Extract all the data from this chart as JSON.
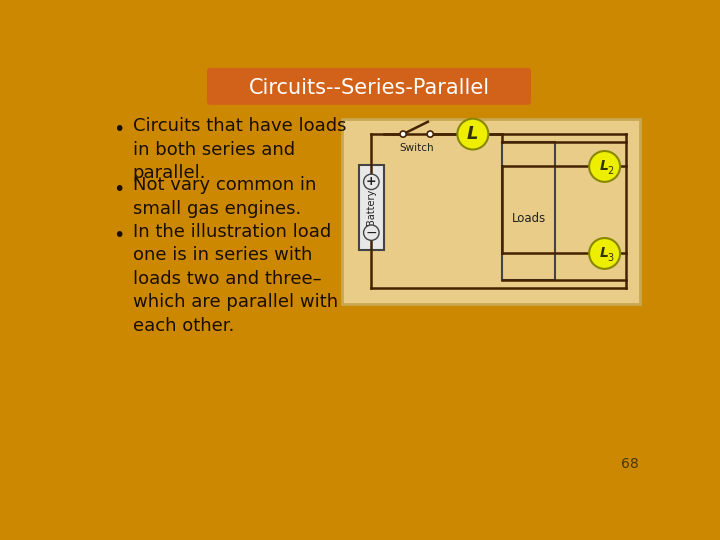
{
  "title": "Circuits--Series-Parallel",
  "title_bg_color": "#D2611A",
  "title_text_color": "#FFFFFF",
  "slide_bg_color": "#CC8800",
  "bullet_points": [
    "Circuits that have loads\nin both series and\nparallel.",
    "Not vary common in\nsmall gas engines.",
    "In the illustration load\none is in series with\nloads two and three–\nwhich are parallel with\neach other."
  ],
  "bullet_text_color": "#1A0E00",
  "diagram_bg_color": "#E8CC88",
  "diagram_border_color": "#C8A850",
  "page_number": "68",
  "page_number_color": "#4A3800",
  "wire_color": "#442200",
  "battery_fill": "#E8E8E8",
  "battery_border": "#444444",
  "load_circle_fill": "#EEEE00",
  "load_circle_border": "#888800"
}
